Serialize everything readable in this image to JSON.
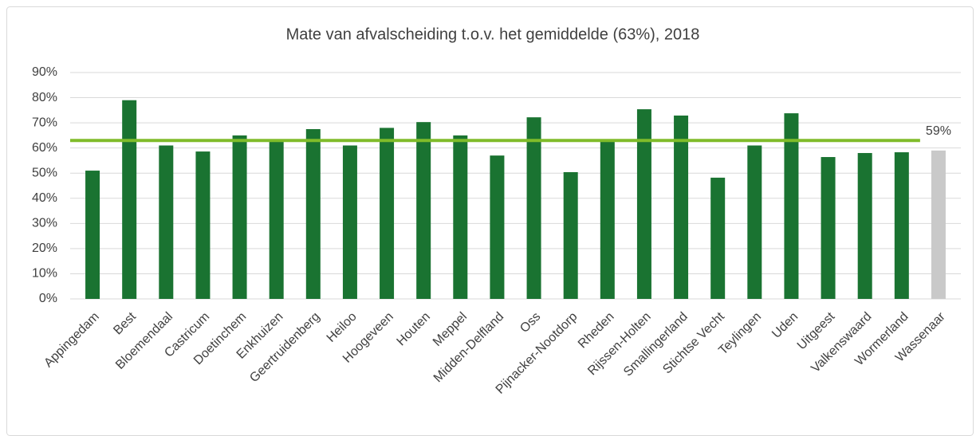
{
  "chart_data": {
    "type": "bar",
    "title": "Mate van afvalscheiding t.o.v. het gemiddelde (63%), 2018",
    "categories": [
      "Appingedam",
      "Best",
      "Bloemendaal",
      "Castricum",
      "Doetinchem",
      "Enkhuizen",
      "Geertruidenberg",
      "Heiloo",
      "Hoogeveen",
      "Houten",
      "Meppel",
      "Midden-Delfland",
      "Oss",
      "Pijnacker-Nootdorp",
      "Rheden",
      "Rijssen-Holten",
      "Smallingerland",
      "Stichtse Vecht",
      "Teylingen",
      "Uden",
      "Uitgeest",
      "Valkenswaard",
      "Wormerland",
      "Wassenaar"
    ],
    "values": [
      51,
      79,
      61,
      58.6,
      65,
      63.4,
      67.5,
      61,
      68,
      70.3,
      65,
      57,
      72.2,
      50.4,
      63.4,
      75.4,
      72.9,
      48.2,
      61,
      73.8,
      56.4,
      58,
      58.3,
      59
    ],
    "value_labels": [
      null,
      null,
      null,
      null,
      null,
      null,
      null,
      null,
      null,
      null,
      null,
      null,
      null,
      null,
      null,
      null,
      null,
      null,
      null,
      null,
      null,
      null,
      null,
      "59%"
    ],
    "colors": [
      "#1a7331",
      "#1a7331",
      "#1a7331",
      "#1a7331",
      "#1a7331",
      "#1a7331",
      "#1a7331",
      "#1a7331",
      "#1a7331",
      "#1a7331",
      "#1a7331",
      "#1a7331",
      "#1a7331",
      "#1a7331",
      "#1a7331",
      "#1a7331",
      "#1a7331",
      "#1a7331",
      "#1a7331",
      "#1a7331",
      "#1a7331",
      "#1a7331",
      "#1a7331",
      "#c9c9c9"
    ],
    "reference_value": 63,
    "reference_color": "#80bc2a",
    "ylim": [
      0,
      90
    ],
    "yticks": [
      {
        "value": 0,
        "label": "0%"
      },
      {
        "value": 10,
        "label": "10%"
      },
      {
        "value": 20,
        "label": "20%"
      },
      {
        "value": 30,
        "label": "30%"
      },
      {
        "value": 40,
        "label": "40%"
      },
      {
        "value": 50,
        "label": "50%"
      },
      {
        "value": 60,
        "label": "60%"
      },
      {
        "value": 70,
        "label": "70%"
      },
      {
        "value": 80,
        "label": "80%"
      },
      {
        "value": 90,
        "label": "90%"
      }
    ],
    "grid": true
  }
}
